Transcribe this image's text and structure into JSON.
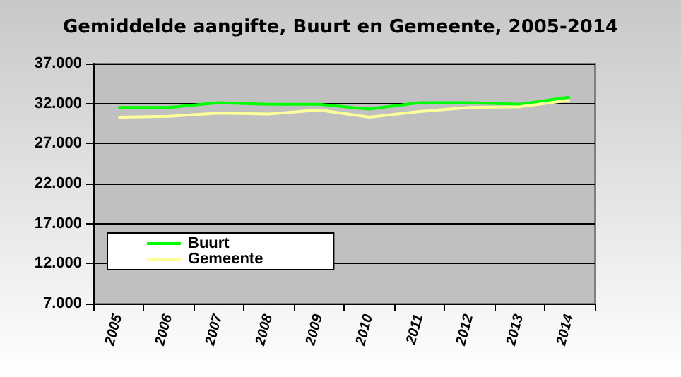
{
  "chart_data": {
    "type": "line",
    "title": "Gemiddelde aangifte, Buurt en Gemeente, 2005-2014",
    "categories": [
      "2005",
      "2006",
      "2007",
      "2008",
      "2009",
      "2010",
      "2011",
      "2012",
      "2013",
      "2014"
    ],
    "series": [
      {
        "name": "Buurt",
        "color": "#00ff00",
        "values": [
          31500,
          31500,
          32100,
          31900,
          31900,
          31300,
          32100,
          32100,
          31900,
          32800
        ]
      },
      {
        "name": "Gemeente",
        "color": "#ffff99",
        "values": [
          30300,
          30400,
          30800,
          30700,
          31200,
          30300,
          31000,
          31500,
          31600,
          32400
        ]
      }
    ],
    "ylim": [
      7000,
      37000
    ],
    "yticks": [
      {
        "value": 7000,
        "label": "7.000"
      },
      {
        "value": 12000,
        "label": "12.000"
      },
      {
        "value": 17000,
        "label": "17.000"
      },
      {
        "value": 22000,
        "label": "22.000"
      },
      {
        "value": 27000,
        "label": "27.000"
      },
      {
        "value": 32000,
        "label": "32.000"
      },
      {
        "value": 37000,
        "label": "37.000"
      }
    ],
    "grid": "y",
    "legend": "bottom left",
    "marker": "none",
    "line_style": "solid"
  }
}
